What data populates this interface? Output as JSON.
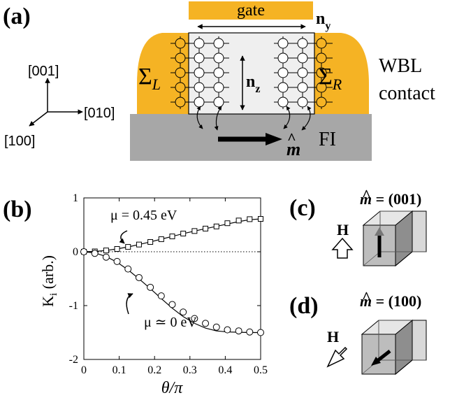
{
  "panels": {
    "a": {
      "label": "(a)",
      "gate_label": "gate",
      "ny_label": "n",
      "ny_sub": "y",
      "nz_label": "n",
      "nz_sub": "z",
      "sigma_left": "Σ",
      "sigma_left_sub": "L",
      "sigma_right": "Σ",
      "sigma_right_sub": "R",
      "contact_line1": "WBL",
      "contact_line2": "contact",
      "fi_label": "FI",
      "m_label": "m",
      "hat": "^",
      "axis_001": "[001]",
      "axis_010": "[010]",
      "axis_100": "[100]",
      "colors": {
        "gold": "#f5b324",
        "fi_gray": "#a7a7a7",
        "channel": "#efefef"
      }
    },
    "b": {
      "label": "(b)",
      "annotation_045": "μ = 0.45 eV",
      "annotation_0": "μ ≃ 0 eV"
    },
    "c": {
      "label": "(c)",
      "m_label": "m",
      "m_value": " = (001)",
      "h_label": "H"
    },
    "d": {
      "label": "(d)",
      "m_label": "m",
      "m_value": " = (100)",
      "h_label": "H"
    }
  },
  "chart_data": {
    "type": "line",
    "xlabel": "θ/π",
    "ylabel": "K",
    "ylabel_sub": "i",
    "ylabel_suffix": " (arb.)",
    "xlim": [
      0,
      0.5
    ],
    "ylim": [
      -2,
      1
    ],
    "xticks": [
      "0",
      "0.1",
      "0.2",
      "0.3",
      "0.4",
      "0.5"
    ],
    "yticks": [
      "-2",
      "-1",
      "0",
      "1"
    ],
    "reference_line": 0,
    "series": [
      {
        "marker": "square",
        "x": [
          0,
          0.031,
          0.063,
          0.094,
          0.125,
          0.156,
          0.188,
          0.219,
          0.25,
          0.281,
          0.313,
          0.344,
          0.375,
          0.406,
          0.438,
          0.469,
          0.5
        ],
        "values": [
          0,
          0.006,
          0.024,
          0.052,
          0.09,
          0.134,
          0.182,
          0.233,
          0.285,
          0.338,
          0.385,
          0.43,
          0.47,
          0.53,
          0.58,
          0.605,
          0.61
        ],
        "fit": [
          0,
          0.006,
          0.024,
          0.053,
          0.09,
          0.134,
          0.183,
          0.234,
          0.285,
          0.336,
          0.385,
          0.43,
          0.471,
          0.515,
          0.56,
          0.595,
          0.61
        ]
      },
      {
        "marker": "circle",
        "x": [
          0,
          0.031,
          0.063,
          0.094,
          0.125,
          0.156,
          0.188,
          0.219,
          0.25,
          0.281,
          0.313,
          0.344,
          0.375,
          0.406,
          0.438,
          0.469,
          0.5
        ],
        "values": [
          0,
          -0.03,
          -0.1,
          -0.18,
          -0.32,
          -0.48,
          -0.66,
          -0.82,
          -0.98,
          -1.12,
          -1.24,
          -1.33,
          -1.4,
          -1.45,
          -1.47,
          -1.49,
          -1.5
        ],
        "fit": [
          0,
          -0.022,
          -0.088,
          -0.195,
          -0.336,
          -0.503,
          -0.684,
          -0.869,
          -1.048,
          -1.205,
          -1.33,
          -1.418,
          -1.47,
          -1.49,
          -1.495,
          -1.5,
          -1.5
        ]
      }
    ]
  }
}
